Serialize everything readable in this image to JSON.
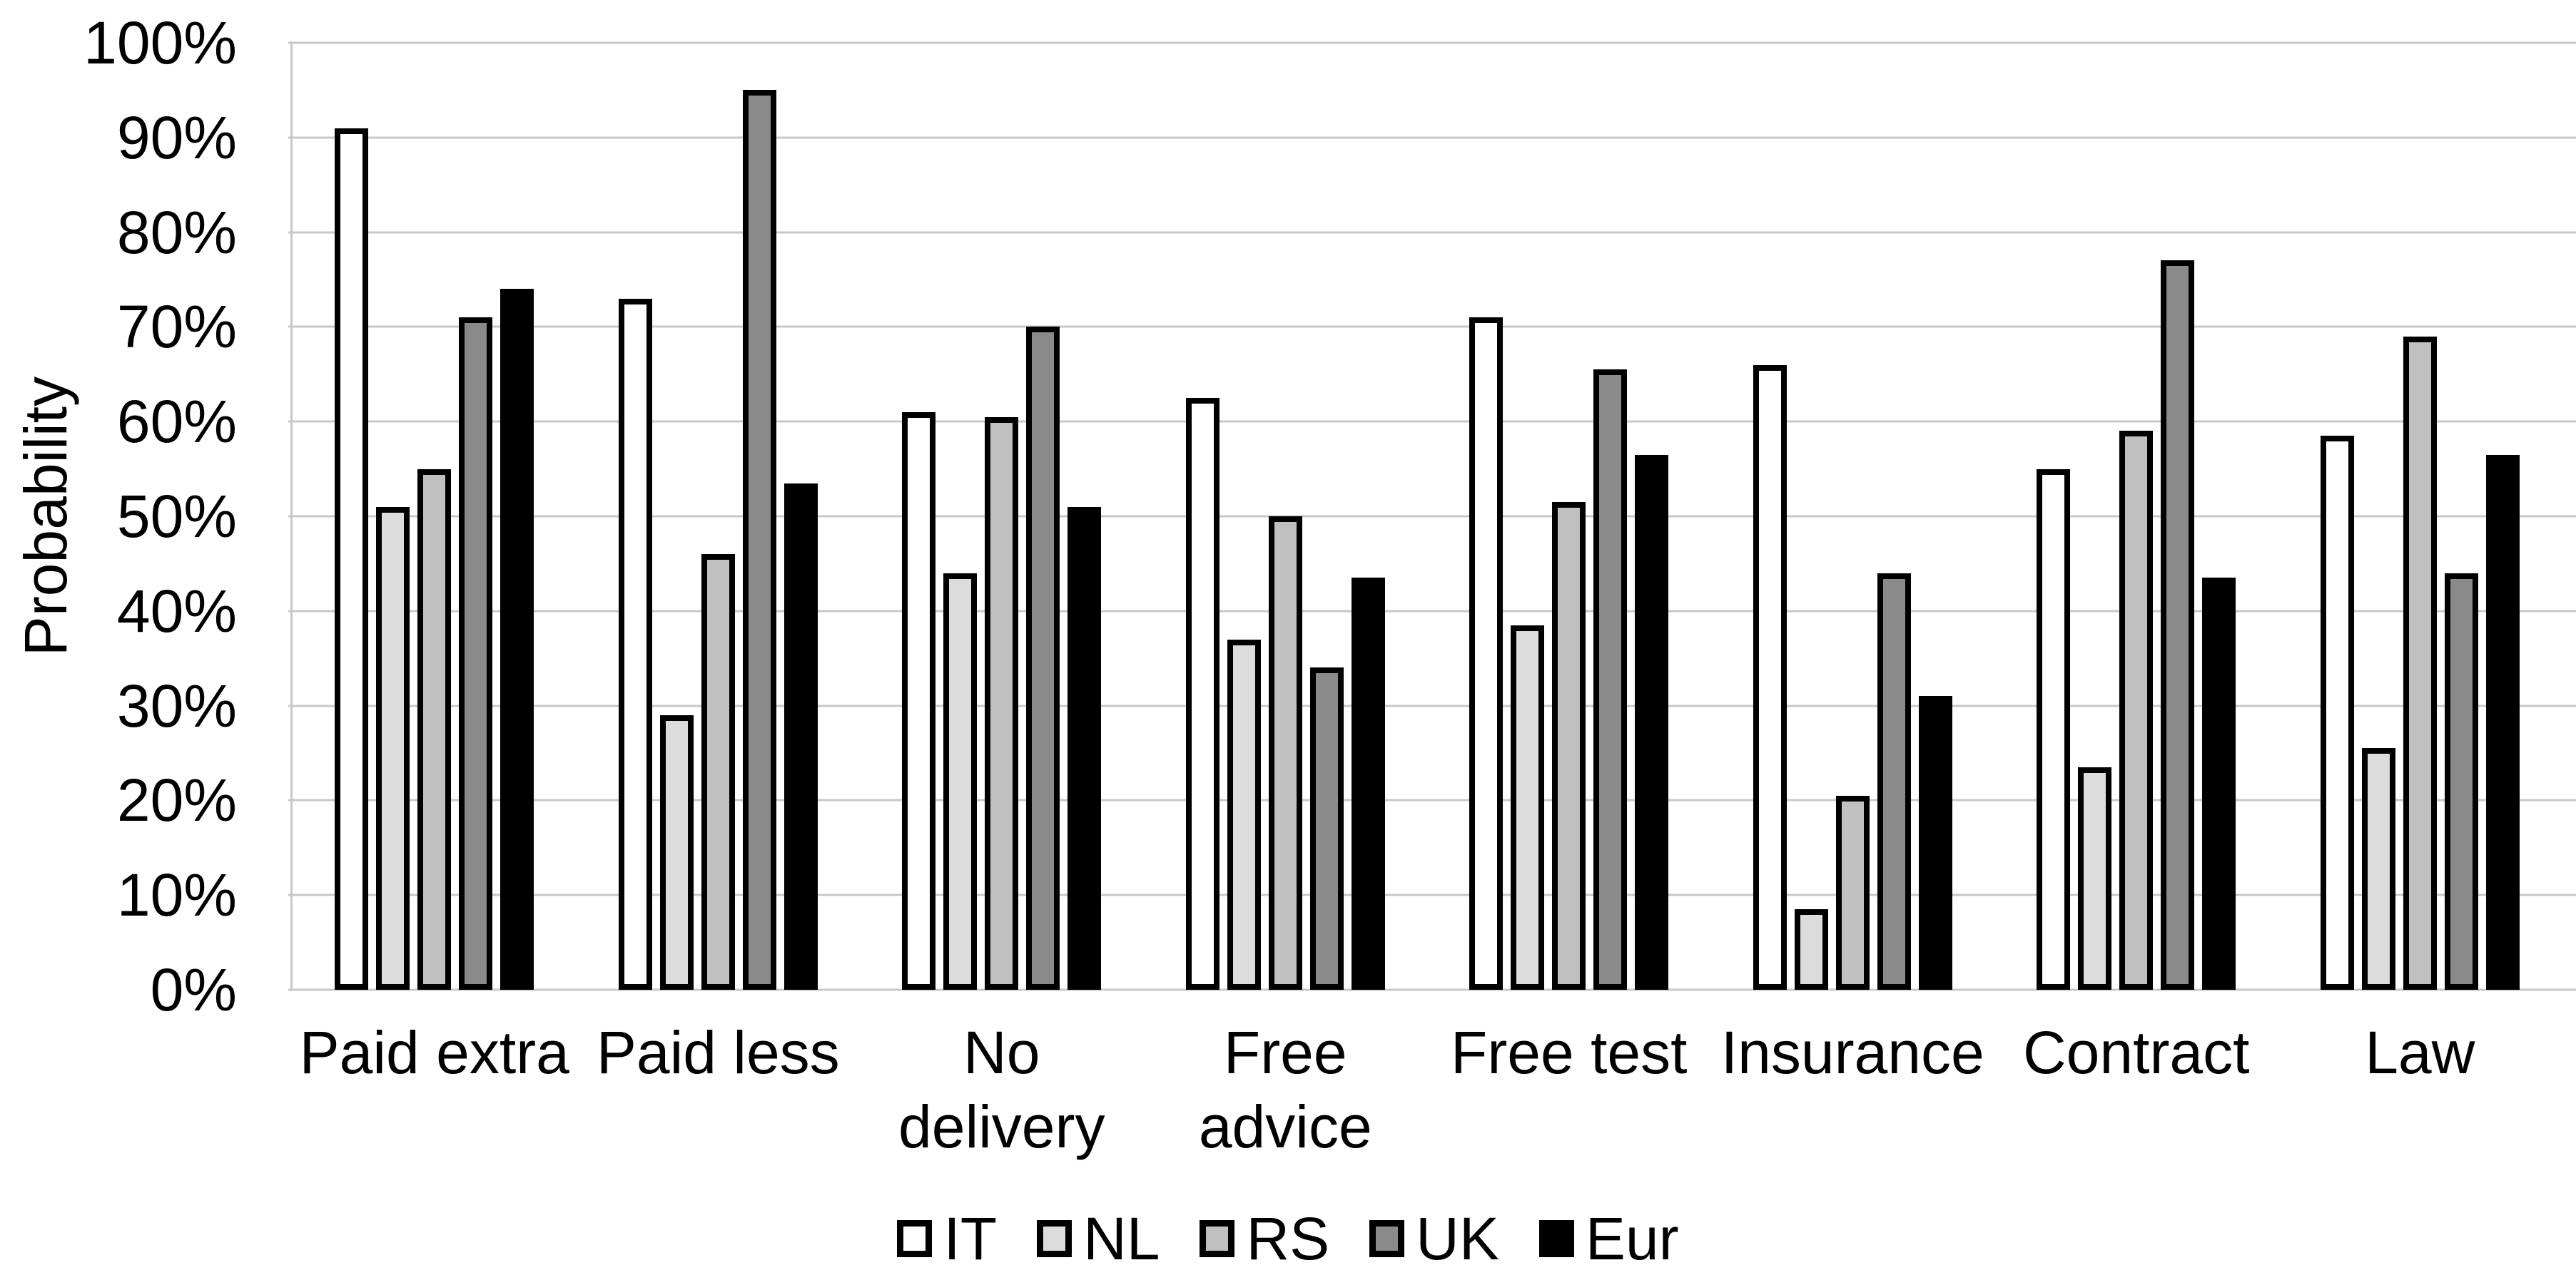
{
  "chart_data": {
    "type": "bar",
    "title": "",
    "ylabel": "Probability",
    "xlabel": "",
    "ylim": [
      0,
      100
    ],
    "grid": true,
    "legend_position": "bottom",
    "yticks": [
      "0%",
      "10%",
      "20%",
      "30%",
      "40%",
      "50%",
      "60%",
      "70%",
      "80%",
      "90%",
      "100%"
    ],
    "categories": [
      "Paid extra",
      "Paid less",
      "No delivery",
      "Free advice",
      "Free test",
      "Insurance",
      "Contract",
      "Law"
    ],
    "category_label_lines": [
      [
        "Paid extra"
      ],
      [
        "Paid less"
      ],
      [
        "No",
        "delivery"
      ],
      [
        "Free",
        "advice"
      ],
      [
        "Free test"
      ],
      [
        "Insurance"
      ],
      [
        "Contract"
      ],
      [
        "Law"
      ]
    ],
    "series": [
      {
        "name": "IT",
        "color": "#ffffff",
        "values": [
          91,
          73,
          61,
          62.5,
          71,
          66,
          55,
          58.5
        ]
      },
      {
        "name": "NL",
        "color": "#dcdcdc",
        "values": [
          51,
          29,
          44,
          37,
          38.5,
          8.5,
          23.5,
          25.5
        ]
      },
      {
        "name": "RS",
        "color": "#c0c0c0",
        "values": [
          55,
          46,
          60.5,
          50,
          51.5,
          20.5,
          59,
          69
        ]
      },
      {
        "name": "UK",
        "color": "#8a8a8a",
        "values": [
          71,
          95,
          70,
          34,
          65.5,
          44,
          77,
          44
        ]
      },
      {
        "name": "Eur",
        "color": "#000000",
        "values": [
          74,
          53.5,
          51,
          43.5,
          56.5,
          31,
          43.5,
          56.5
        ]
      }
    ],
    "colors": {
      "bar_border": "#000000",
      "gridline": "#c8c8c8",
      "text": "#000000",
      "background": "#ffffff"
    }
  }
}
